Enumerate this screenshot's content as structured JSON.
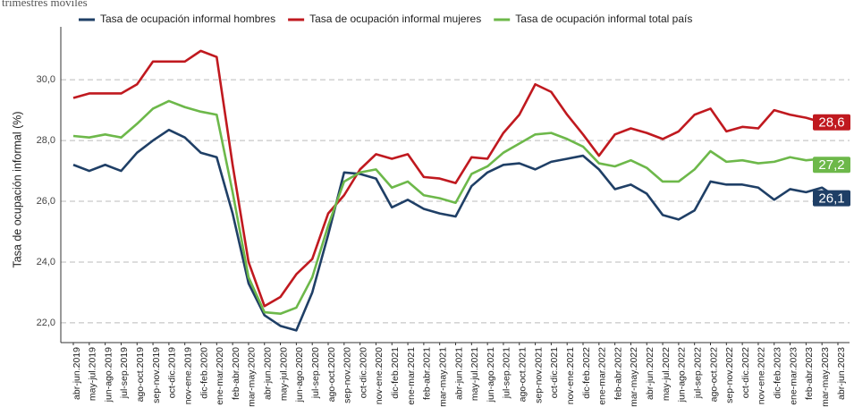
{
  "chart_data": {
    "type": "line",
    "subtitle": "trimestres móviles",
    "ylabel": "Tasa de ocupación informal (%)",
    "categories": [
      "abr-jun.2019",
      "may-jul.2019",
      "jun-ago.2019",
      "jul-sep.2019",
      "ago-oct.2019",
      "sep-nov.2019",
      "oct-dic.2019",
      "nov-ene.2019",
      "dic-feb.2020",
      "ene-mar.2020",
      "feb-abr.2020",
      "mar-may.2020",
      "abr-jun.2020",
      "may-jul.2020",
      "jun-ago.2020",
      "jul-sep.2020",
      "ago-oct.2020",
      "sep-nov.2020",
      "oct-dic.2020",
      "nov-ene.2020",
      "dic-feb.2021",
      "ene-mar.2021",
      "feb-abr.2021",
      "mar-may.2021",
      "abr-jun.2021",
      "may-jul.2021",
      "jun-ago.2021",
      "jul-sep.2021",
      "ago-oct.2021",
      "sep-nov.2021",
      "oct-dic.2021",
      "nov-ene.2021",
      "dic-feb.2022",
      "ene-mar.2022",
      "feb-abr.2022",
      "mar-may.2022",
      "abr-jun.2022",
      "may-jul.2022",
      "jun-ago.2022",
      "jul-sep.2022",
      "ago-oct.2022",
      "sep-nov.2022",
      "oct-dic.2022",
      "nov-ene.2022",
      "dic-feb.2023",
      "ene-mar.2023",
      "feb-abr.2023",
      "mar-may.2023",
      "abr-jun.2023"
    ],
    "series": [
      {
        "name": "Tasa de ocupación informal hombres",
        "color": "#1f3f66",
        "values": [
          27.2,
          27.0,
          27.2,
          27.0,
          27.6,
          28.0,
          28.35,
          28.1,
          27.6,
          27.45,
          25.6,
          23.3,
          22.25,
          21.9,
          21.75,
          23.0,
          24.9,
          26.95,
          26.9,
          26.75,
          25.8,
          26.05,
          25.75,
          25.6,
          25.5,
          26.5,
          26.95,
          27.2,
          27.25,
          27.05,
          27.3,
          27.4,
          27.5,
          27.05,
          26.4,
          26.55,
          26.25,
          25.55,
          25.4,
          25.7,
          26.65,
          26.55,
          26.55,
          26.45,
          26.05,
          26.4,
          26.3,
          26.45,
          26.1
        ],
        "value_labels": [
          null,
          null,
          null,
          null,
          null,
          null,
          null,
          null,
          null,
          null,
          null,
          null,
          null,
          null,
          null,
          null,
          null,
          null,
          null,
          null,
          null,
          null,
          null,
          null,
          null,
          null,
          null,
          null,
          null,
          null,
          null,
          null,
          null,
          null,
          null,
          null,
          null,
          null,
          null,
          null,
          null,
          null,
          null,
          null,
          null,
          null,
          null,
          null,
          "26,1"
        ]
      },
      {
        "name": "Tasa de ocupación informal mujeres",
        "color": "#c0191f",
        "values": [
          29.4,
          29.55,
          29.55,
          29.55,
          29.85,
          30.6,
          30.6,
          30.6,
          30.95,
          30.75,
          27.2,
          24.0,
          22.55,
          22.85,
          23.6,
          24.1,
          25.6,
          26.2,
          27.05,
          27.55,
          27.4,
          27.55,
          26.8,
          26.75,
          26.6,
          27.45,
          27.4,
          28.25,
          28.85,
          29.85,
          29.6,
          28.85,
          28.2,
          27.5,
          28.2,
          28.4,
          28.25,
          28.05,
          28.3,
          28.85,
          29.05,
          28.3,
          28.45,
          28.4,
          29.0,
          28.85,
          28.75,
          28.6,
          28.6
        ],
        "value_labels": [
          null,
          null,
          null,
          null,
          null,
          null,
          null,
          null,
          null,
          null,
          null,
          null,
          null,
          null,
          null,
          null,
          null,
          null,
          null,
          null,
          null,
          null,
          null,
          null,
          null,
          null,
          null,
          null,
          null,
          null,
          null,
          null,
          null,
          null,
          null,
          null,
          null,
          null,
          null,
          null,
          null,
          null,
          null,
          null,
          null,
          null,
          null,
          null,
          "28,6"
        ]
      },
      {
        "name": "Tasa de ocupación informal total país",
        "color": "#6db84a",
        "values": [
          28.15,
          28.1,
          28.2,
          28.1,
          28.55,
          29.05,
          29.3,
          29.1,
          28.95,
          28.85,
          26.3,
          23.5,
          22.35,
          22.3,
          22.5,
          23.5,
          25.2,
          26.65,
          26.95,
          27.05,
          26.45,
          26.65,
          26.2,
          26.1,
          25.95,
          26.9,
          27.15,
          27.6,
          27.9,
          28.2,
          28.25,
          28.05,
          27.8,
          27.25,
          27.15,
          27.35,
          27.1,
          26.65,
          26.65,
          27.05,
          27.65,
          27.3,
          27.35,
          27.25,
          27.3,
          27.45,
          27.35,
          27.4,
          27.2
        ],
        "value_labels": [
          null,
          null,
          null,
          null,
          null,
          null,
          null,
          null,
          null,
          null,
          null,
          null,
          null,
          null,
          null,
          null,
          null,
          null,
          null,
          null,
          null,
          null,
          null,
          null,
          null,
          null,
          null,
          null,
          null,
          null,
          null,
          null,
          null,
          null,
          null,
          null,
          null,
          null,
          null,
          null,
          null,
          null,
          null,
          null,
          null,
          null,
          null,
          null,
          "27,2"
        ]
      }
    ],
    "ylim": [
      21.35,
      31.3
    ],
    "yticks": [
      {
        "value": 22,
        "label": "22,0"
      },
      {
        "value": 24,
        "label": "24,0"
      },
      {
        "value": 26,
        "label": "26,0"
      },
      {
        "value": 28,
        "label": "28,0"
      },
      {
        "value": 30,
        "label": "30,0"
      }
    ],
    "grid": true,
    "legend": "top"
  }
}
